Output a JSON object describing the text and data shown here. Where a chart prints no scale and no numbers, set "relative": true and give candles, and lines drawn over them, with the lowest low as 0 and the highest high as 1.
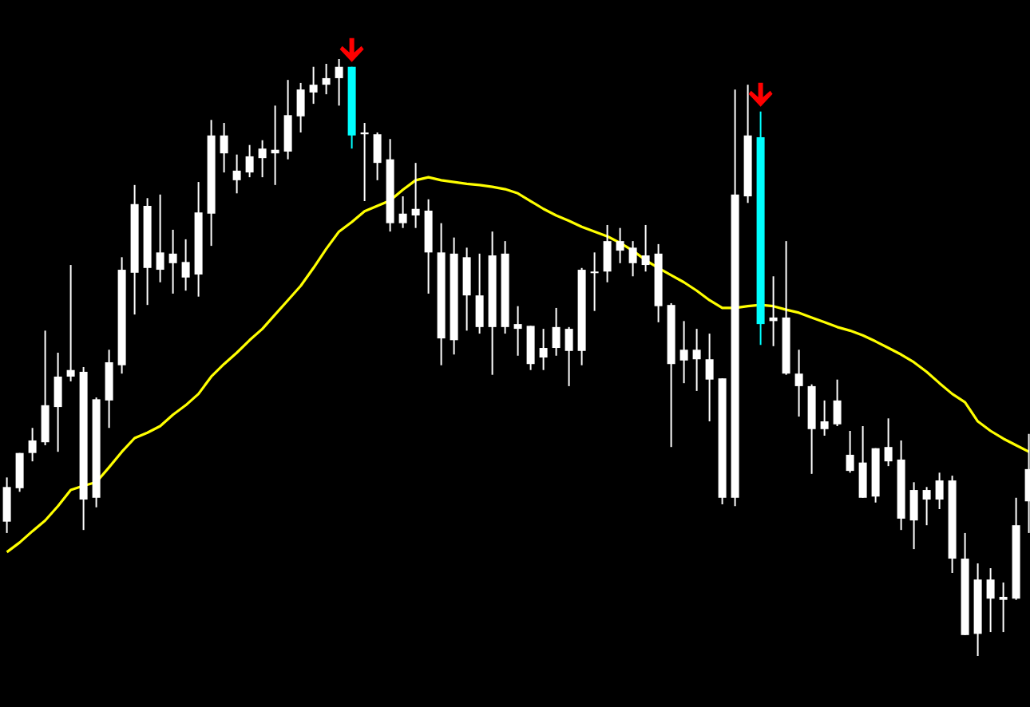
{
  "chart_data": {
    "type": "candlestick",
    "relative": true,
    "categories": [
      null,
      null,
      null,
      null,
      null,
      null,
      null,
      null,
      null,
      null,
      null,
      null,
      null,
      null,
      null,
      null,
      null,
      null,
      null,
      null,
      null,
      null,
      null,
      null,
      null,
      null,
      null,
      null,
      null,
      null,
      null,
      null,
      null,
      null,
      null,
      null,
      null,
      null,
      null,
      null,
      null,
      null,
      null,
      null,
      null,
      null,
      null,
      null,
      null,
      null,
      null,
      null,
      null,
      null,
      null,
      null,
      null,
      null,
      null,
      null,
      null,
      null,
      null,
      null,
      null,
      null,
      null,
      null,
      null,
      null,
      null,
      null,
      null,
      null,
      null,
      null,
      null,
      null,
      null,
      null,
      null
    ],
    "ohlc": [
      [
        0.225,
        0.299,
        0.206,
        0.283
      ],
      [
        0.281,
        0.34,
        0.275,
        0.34
      ],
      [
        0.34,
        0.382,
        0.326,
        0.361
      ],
      [
        0.358,
        0.545,
        0.353,
        0.42
      ],
      [
        0.417,
        0.508,
        0.342,
        0.468
      ],
      [
        0.468,
        0.655,
        0.46,
        0.479
      ],
      [
        0.262,
        0.484,
        0.211,
        0.476
      ],
      [
        0.265,
        0.433,
        0.249,
        0.43
      ],
      [
        0.428,
        0.513,
        0.382,
        0.492
      ],
      [
        0.487,
        0.668,
        0.473,
        0.647
      ],
      [
        0.642,
        0.789,
        0.572,
        0.757
      ],
      [
        0.65,
        0.767,
        0.588,
        0.754
      ],
      [
        0.647,
        0.773,
        0.626,
        0.676
      ],
      [
        0.658,
        0.714,
        0.607,
        0.674
      ],
      [
        0.634,
        0.698,
        0.612,
        0.66
      ],
      [
        0.639,
        0.794,
        0.602,
        0.743
      ],
      [
        0.741,
        0.898,
        0.687,
        0.872
      ],
      [
        0.842,
        0.893,
        0.81,
        0.872
      ],
      [
        0.797,
        0.84,
        0.775,
        0.813
      ],
      [
        0.81,
        0.856,
        0.802,
        0.837
      ],
      [
        0.834,
        0.864,
        0.802,
        0.85
      ],
      [
        0.842,
        0.922,
        0.789,
        0.848
      ],
      [
        0.845,
        0.965,
        0.832,
        0.906
      ],
      [
        0.904,
        0.96,
        0.877,
        0.949
      ],
      [
        0.944,
        0.987,
        0.925,
        0.957
      ],
      [
        0.957,
        0.992,
        0.941,
        0.968
      ],
      [
        0.968,
        1,
        0.922,
        0.987
      ],
      [
        0.987,
        0.987,
        0.85,
        0.872
      ],
      [
        0.874,
        0.893,
        0.762,
        0.877
      ],
      [
        0.826,
        0.877,
        0.797,
        0.874
      ],
      [
        0.725,
        0.866,
        0.711,
        0.832
      ],
      [
        0.725,
        0.77,
        0.717,
        0.741
      ],
      [
        0.738,
        0.826,
        0.717,
        0.749
      ],
      [
        0.676,
        0.765,
        0.607,
        0.746
      ],
      [
        0.532,
        0.725,
        0.487,
        0.676
      ],
      [
        0.529,
        0.701,
        0.505,
        0.674
      ],
      [
        0.604,
        0.684,
        0.545,
        0.668
      ],
      [
        0.551,
        0.674,
        0.54,
        0.604
      ],
      [
        0.551,
        0.711,
        0.471,
        0.671
      ],
      [
        0.551,
        0.695,
        0.54,
        0.674
      ],
      [
        0.548,
        0.586,
        0.503,
        0.556
      ],
      [
        0.489,
        0.553,
        0.479,
        0.553
      ],
      [
        0.5,
        0.548,
        0.479,
        0.516
      ],
      [
        0.516,
        0.583,
        0.503,
        0.551
      ],
      [
        0.511,
        0.551,
        0.452,
        0.548
      ],
      [
        0.511,
        0.65,
        0.487,
        0.647
      ],
      [
        0.642,
        0.676,
        0.578,
        0.644
      ],
      [
        0.644,
        0.722,
        0.626,
        0.695
      ],
      [
        0.679,
        0.717,
        0.658,
        0.695
      ],
      [
        0.658,
        0.695,
        0.636,
        0.684
      ],
      [
        0.655,
        0.722,
        0.644,
        0.671
      ],
      [
        0.586,
        0.69,
        0.559,
        0.674
      ],
      [
        0.489,
        0.591,
        0.35,
        0.588
      ],
      [
        0.495,
        0.561,
        0.457,
        0.513
      ],
      [
        0.497,
        0.548,
        0.444,
        0.513
      ],
      [
        0.463,
        0.54,
        0.393,
        0.497
      ],
      [
        0.265,
        0.465,
        0.254,
        0.465
      ],
      [
        0.265,
        0.949,
        0.251,
        0.773
      ],
      [
        0.77,
        0.957,
        0.759,
        0.872
      ],
      [
        0.869,
        0.912,
        0.521,
        0.556
      ],
      [
        0.561,
        0.636,
        0.519,
        0.567
      ],
      [
        0.473,
        0.695,
        0.471,
        0.567
      ],
      [
        0.452,
        0.513,
        0.401,
        0.473
      ],
      [
        0.38,
        0.455,
        0.305,
        0.452
      ],
      [
        0.38,
        0.428,
        0.369,
        0.393
      ],
      [
        0.388,
        0.463,
        0.385,
        0.428
      ],
      [
        0.31,
        0.377,
        0.307,
        0.337
      ],
      [
        0.265,
        0.385,
        0.265,
        0.324
      ],
      [
        0.267,
        0.348,
        0.257,
        0.348
      ],
      [
        0.326,
        0.398,
        0.318,
        0.35
      ],
      [
        0.23,
        0.361,
        0.211,
        0.329
      ],
      [
        0.227,
        0.291,
        0.179,
        0.278
      ],
      [
        0.262,
        0.283,
        0.219,
        0.278
      ],
      [
        0.262,
        0.307,
        0.246,
        0.294
      ],
      [
        0.163,
        0.302,
        0.139,
        0.294
      ],
      [
        0.035,
        0.206,
        0.035,
        0.163
      ],
      [
        0.037,
        0.155,
        0,
        0.128
      ],
      [
        0.096,
        0.147,
        0.04,
        0.128
      ],
      [
        0.094,
        0.123,
        0.04,
        0.099
      ],
      [
        0.096,
        0.265,
        0.094,
        0.219
      ],
      [
        0.259,
        0.372,
        0.206,
        0.313
      ]
    ],
    "color": "#ffffff",
    "colors": [
      "#ffffff",
      "#ffffff",
      "#ffffff",
      "#ffffff",
      "#ffffff",
      "#ffffff",
      "#ffffff",
      "#ffffff",
      "#ffffff",
      "#ffffff",
      "#ffffff",
      "#ffffff",
      "#ffffff",
      "#ffffff",
      "#ffffff",
      "#ffffff",
      "#ffffff",
      "#ffffff",
      "#ffffff",
      "#ffffff",
      "#ffffff",
      "#ffffff",
      "#ffffff",
      "#ffffff",
      "#ffffff",
      "#ffffff",
      "#ffffff",
      "#00ffff",
      "#ffffff",
      "#ffffff",
      "#ffffff",
      "#ffffff",
      "#ffffff",
      "#ffffff",
      "#ffffff",
      "#ffffff",
      "#ffffff",
      "#ffffff",
      "#ffffff",
      "#ffffff",
      "#ffffff",
      "#ffffff",
      "#ffffff",
      "#ffffff",
      "#ffffff",
      "#ffffff",
      "#ffffff",
      "#ffffff",
      "#ffffff",
      "#ffffff",
      "#ffffff",
      "#ffffff",
      "#ffffff",
      "#ffffff",
      "#ffffff",
      "#ffffff",
      "#ffffff",
      "#ffffff",
      "#ffffff",
      "#00ffff",
      "#ffffff",
      "#ffffff",
      "#ffffff",
      "#ffffff",
      "#ffffff",
      "#ffffff",
      "#ffffff",
      "#ffffff",
      "#ffffff",
      "#ffffff",
      "#ffffff",
      "#ffffff",
      "#ffffff",
      "#ffffff",
      "#ffffff",
      "#ffffff",
      "#ffffff",
      "#ffffff",
      "#ffffff",
      "#ffffff",
      "#ffffff"
    ],
    "series": [
      {
        "type": "line",
        "color": "#ffff00",
        "values": [
          0.174,
          0.19,
          0.209,
          0.227,
          0.251,
          0.278,
          0.285,
          0.291,
          0.316,
          0.342,
          0.365,
          0.374,
          0.385,
          0.404,
          0.42,
          0.439,
          0.468,
          0.489,
          0.508,
          0.529,
          0.548,
          0.572,
          0.596,
          0.62,
          0.65,
          0.682,
          0.711,
          0.727,
          0.745,
          0.754,
          0.763,
          0.781,
          0.797,
          0.802,
          0.797,
          0.794,
          0.791,
          0.789,
          0.786,
          0.782,
          0.775,
          0.762,
          0.749,
          0.738,
          0.729,
          0.719,
          0.711,
          0.703,
          0.692,
          0.679,
          0.663,
          0.65,
          0.638,
          0.626,
          0.612,
          0.596,
          0.583,
          0.583,
          0.586,
          0.588,
          0.586,
          0.58,
          0.575,
          0.567,
          0.559,
          0.551,
          0.545,
          0.537,
          0.527,
          0.516,
          0.505,
          0.492,
          0.476,
          0.457,
          0.439,
          0.425,
          0.393,
          0.377,
          0.364,
          0.353,
          0.342
        ]
      }
    ]
  }
}
